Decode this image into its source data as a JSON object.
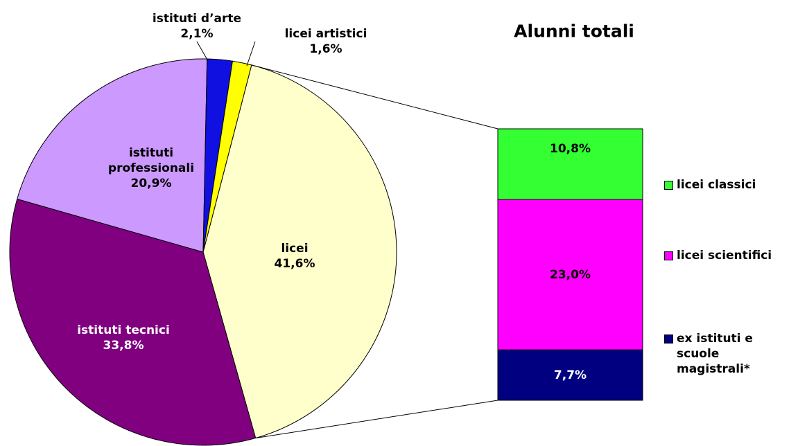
{
  "chart_data": {
    "type": "bar-of-pie",
    "title": "Alunni totali",
    "pie": {
      "categories": [
        "licei",
        "istituti tecnici",
        "istituti professionali",
        "istituti d’arte",
        "licei artistici"
      ],
      "values": [
        41.6,
        33.8,
        20.9,
        2.1,
        1.6
      ],
      "value_labels": [
        "41,6%",
        "33,8%",
        "20,9%",
        "2,1%",
        "1,6%"
      ],
      "colors": [
        "#ffffcc",
        "#800080",
        "#cc99ff",
        "#1010e0",
        "#ffff00"
      ]
    },
    "bar": {
      "categories": [
        "licei classici",
        "licei scientifici",
        "ex istituti e scuole magistrali*"
      ],
      "values": [
        10.8,
        23.0,
        7.7
      ],
      "value_labels": [
        "10,8%",
        "23,0%",
        "7,7%"
      ],
      "colors": [
        "#33ff33",
        "#ff00ff",
        "#000080"
      ]
    }
  }
}
